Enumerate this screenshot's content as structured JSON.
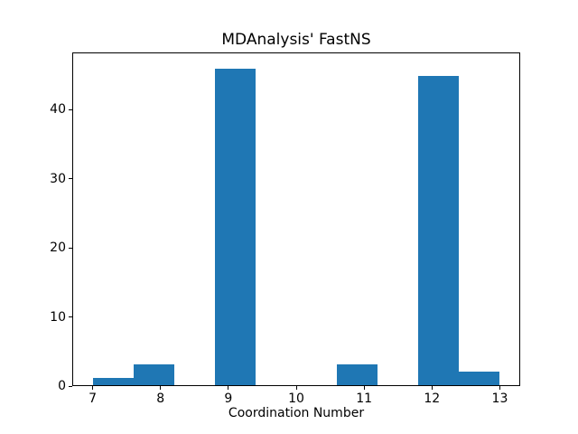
{
  "figure": {
    "background_color": "#ffffff"
  },
  "chart_data": {
    "type": "bar",
    "chart_kind": "histogram",
    "title": "MDAnalysis' FastNS",
    "xlabel": "Coordination Number",
    "ylabel": "",
    "xlim": [
      6.7,
      13.3
    ],
    "ylim": [
      0,
      48.3
    ],
    "xticks": [
      7,
      8,
      9,
      10,
      11,
      12,
      13
    ],
    "yticks": [
      0,
      10,
      20,
      30,
      40
    ],
    "grid": false,
    "legend": null,
    "bar_color": "#1f77b4",
    "bins": [
      {
        "x0": 7.0,
        "x1": 7.6,
        "count": 1
      },
      {
        "x0": 7.6,
        "x1": 8.2,
        "count": 3
      },
      {
        "x0": 8.2,
        "x1": 8.8,
        "count": 0
      },
      {
        "x0": 8.8,
        "x1": 9.4,
        "count": 46
      },
      {
        "x0": 9.4,
        "x1": 10.0,
        "count": 0
      },
      {
        "x0": 10.0,
        "x1": 10.6,
        "count": 0
      },
      {
        "x0": 10.6,
        "x1": 11.2,
        "count": 3
      },
      {
        "x0": 11.2,
        "x1": 11.8,
        "count": 0
      },
      {
        "x0": 11.8,
        "x1": 12.4,
        "count": 45
      },
      {
        "x0": 12.4,
        "x1": 13.0,
        "count": 2
      }
    ],
    "counts_by_coordination_number": {
      "7": 1,
      "8": 3,
      "9": 46,
      "10": 0,
      "11": 3,
      "12": 45,
      "13": 2
    }
  }
}
